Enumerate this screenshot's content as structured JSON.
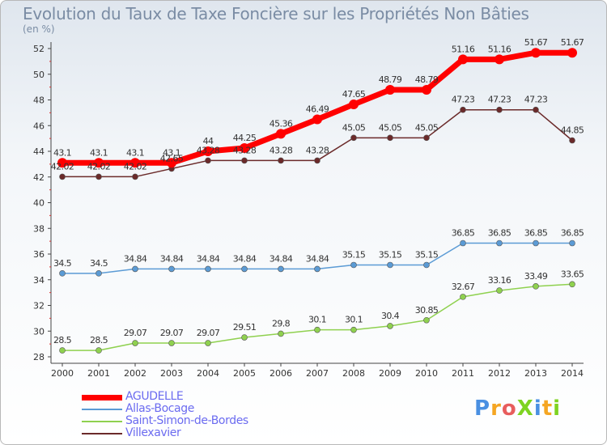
{
  "title": "Evolution du Taux de Taxe Foncière sur les Propriétés Non Bâties",
  "unit": "(en %)",
  "logo": {
    "text": "ProXiti",
    "colors": [
      "#4a90e2",
      "#f5a623",
      "#e85d5d",
      "#7ed321",
      "#4a90e2",
      "#f5a623",
      "#7ed321"
    ]
  },
  "chart_data": {
    "type": "line",
    "x": [
      "2000",
      "2001",
      "2002",
      "2003",
      "2004",
      "2005",
      "2006",
      "2007",
      "2008",
      "2009",
      "2010",
      "2011",
      "2012",
      "2013",
      "2014"
    ],
    "ylim": [
      28,
      52
    ],
    "yticks": [
      28,
      30,
      32,
      34,
      36,
      38,
      40,
      42,
      44,
      46,
      48,
      50,
      52
    ],
    "grid": false,
    "legend_position": "bottom-left",
    "series": [
      {
        "name": "AGUDELLE",
        "color": "#ff0000",
        "values": [
          43.1,
          43.1,
          43.1,
          43.1,
          44,
          44.25,
          45.36,
          46.49,
          47.65,
          48.79,
          48.79,
          51.16,
          51.16,
          51.67,
          51.67
        ],
        "labels": [
          "43.1",
          "43.1",
          "43.1",
          "43.1",
          "44",
          "44.25",
          "45.36",
          "46.49",
          "47.65",
          "48.79",
          "48.79",
          "51.16",
          "51.16",
          "51.67",
          "51.67"
        ]
      },
      {
        "name": "Allas-Bocage",
        "color": "#5b9bd5",
        "values": [
          34.5,
          34.5,
          34.84,
          34.84,
          34.84,
          34.84,
          34.84,
          34.84,
          35.15,
          35.15,
          35.15,
          36.85,
          36.85,
          36.85,
          36.85
        ],
        "labels": [
          "34.5",
          "34.5",
          "34.84",
          "34.84",
          "34.84",
          "34.84",
          "34.84",
          "34.84",
          "35.15",
          "35.15",
          "35.15",
          "36.85",
          "36.85",
          "36.85",
          "36.85"
        ]
      },
      {
        "name": "Saint-Simon-de-Bordes",
        "color": "#8fd14f",
        "values": [
          28.5,
          28.5,
          29.07,
          29.07,
          29.07,
          29.51,
          29.8,
          30.1,
          30.1,
          30.4,
          30.85,
          32.67,
          33.16,
          33.49,
          33.65
        ],
        "labels": [
          "28.5",
          "28.5",
          "29.07",
          "29.07",
          "29.07",
          "29.51",
          "29.8",
          "30.1",
          "30.1",
          "30.4",
          "30.85",
          "32.67",
          "33.16",
          "33.49",
          "33.65"
        ]
      },
      {
        "name": "Villexavier",
        "color": "#6b2a2a",
        "values": [
          42.02,
          42.02,
          42.02,
          42.65,
          43.28,
          43.28,
          43.28,
          43.28,
          45.05,
          45.05,
          45.05,
          47.23,
          47.23,
          47.23,
          44.85
        ],
        "labels": [
          "42.02",
          "42.02",
          "42.02",
          "42.65",
          "43.28",
          "43.28",
          "43.28",
          "43.28",
          "45.05",
          "45.05",
          "45.05",
          "47.23",
          "47.23",
          "47.23",
          "44.85"
        ]
      }
    ]
  }
}
